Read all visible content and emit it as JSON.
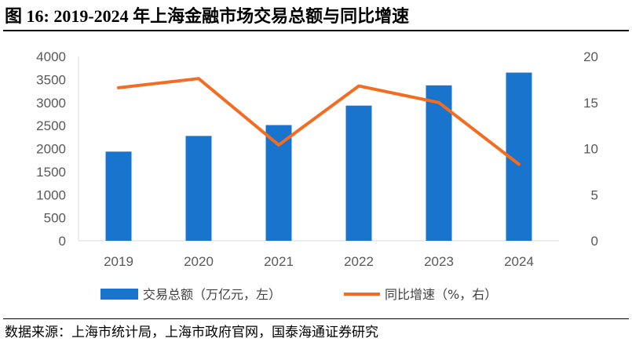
{
  "header": {
    "title": "图 16:  2019-2024 年上海金融市场交易总额与同比增速"
  },
  "footer": {
    "source": "数据来源：上海市统计局，上海市政府官网，国泰海通证券研究"
  },
  "chart_data": {
    "type": "bar",
    "categories": [
      "2019",
      "2020",
      "2021",
      "2022",
      "2023",
      "2024"
    ],
    "series": [
      {
        "name": "交易总额（万亿元，左）",
        "type": "bar",
        "axis": "left",
        "color": "#1874CD",
        "values": [
          1935,
          2275,
          2511,
          2933,
          3373,
          3650
        ]
      },
      {
        "name": "同比增速（%，右）",
        "type": "line",
        "axis": "right",
        "color": "#F36C21",
        "values": [
          16.6,
          17.6,
          10.4,
          16.8,
          15.0,
          8.3
        ]
      }
    ],
    "left_axis": {
      "min": 0,
      "max": 4000,
      "step": 500,
      "tick_labels": [
        "0",
        "500",
        "1000",
        "1500",
        "2000",
        "2500",
        "3000",
        "3500",
        "4000"
      ]
    },
    "right_axis": {
      "min": 0,
      "max": 20,
      "step": 5,
      "tick_labels": [
        "0",
        "5",
        "10",
        "15",
        "20"
      ]
    },
    "grid": false,
    "legend_position": "bottom"
  }
}
